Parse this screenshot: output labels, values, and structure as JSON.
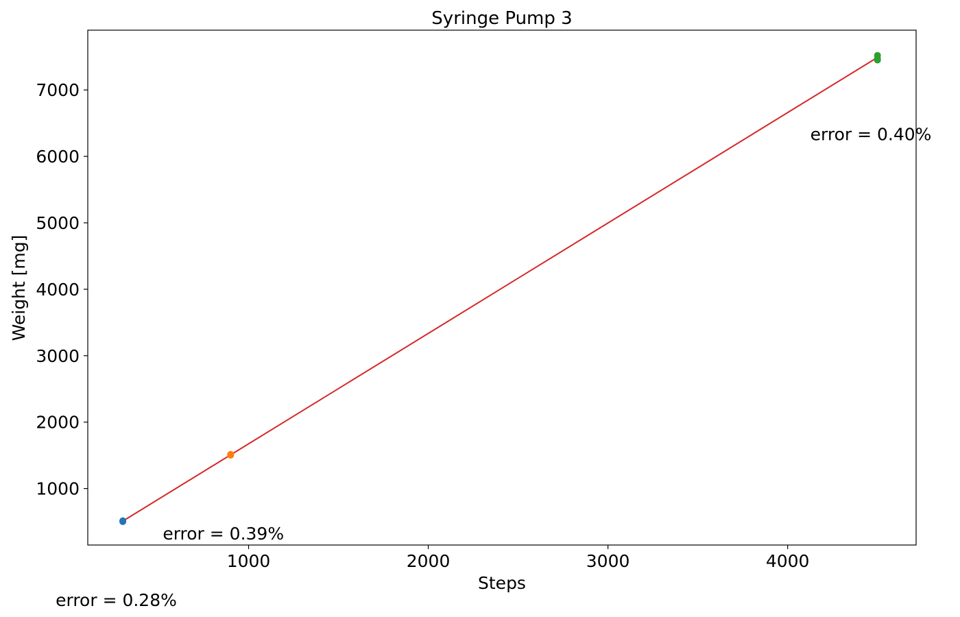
{
  "chart_data": {
    "type": "scatter",
    "title": "Syringe Pump 3",
    "xlabel": "Steps",
    "ylabel": "Weight [mg]",
    "xlim": [
      105,
      4715
    ],
    "ylim": [
      150,
      7900
    ],
    "xticks": [
      1000,
      2000,
      3000,
      4000
    ],
    "yticks": [
      1000,
      2000,
      3000,
      4000,
      5000,
      6000,
      7000
    ],
    "grid": false,
    "series": [
      {
        "color": "#1f77b4",
        "points": [
          {
            "x": 300,
            "y": 508
          },
          {
            "x": 300,
            "y": 515
          },
          {
            "x": 300,
            "y": 502
          }
        ]
      },
      {
        "color": "#ff7f0e",
        "points": [
          {
            "x": 900,
            "y": 1508
          },
          {
            "x": 900,
            "y": 1515
          },
          {
            "x": 900,
            "y": 1502
          }
        ]
      },
      {
        "color": "#2ca02c",
        "points": [
          {
            "x": 4500,
            "y": 7520
          },
          {
            "x": 4500,
            "y": 7470
          },
          {
            "x": 4500,
            "y": 7450
          }
        ]
      }
    ],
    "fit_line": {
      "color": "#d62728",
      "points": [
        {
          "x": 300,
          "y": 510
        },
        {
          "x": 4500,
          "y": 7490
        }
      ]
    },
    "annotations": [
      {
        "text": "error = 0.28%",
        "x": 300,
        "y": 510
      },
      {
        "text": "error = 0.39%",
        "x": 900,
        "y": 1510
      },
      {
        "text": "error = 0.40%",
        "x": 4500,
        "y": 7490
      }
    ]
  }
}
